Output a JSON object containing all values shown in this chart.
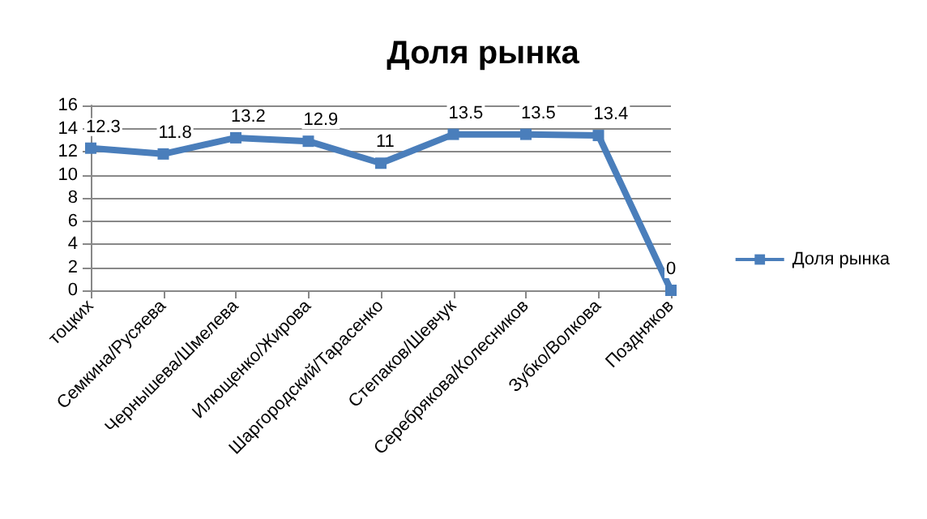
{
  "chart_data": {
    "type": "line",
    "title": "Доля рынка",
    "categories": [
      "тоцких",
      "Семкина/Русяева",
      "Чернышева/Шмелева",
      "Илющенко/Жирова",
      "Шаргородский/Тарасенко",
      "Степаков/Шевчук",
      "Серебрякова/Колесников",
      "Зубко/Волкова",
      "Поздняков"
    ],
    "series": [
      {
        "name": "Доля рынка",
        "color": "#4a7ebb",
        "values": [
          12.3,
          11.8,
          13.2,
          12.9,
          11,
          13.5,
          13.5,
          13.4,
          0
        ]
      }
    ],
    "ylim": [
      0,
      16
    ],
    "yticks": [
      0,
      2,
      4,
      6,
      8,
      10,
      12,
      14,
      16
    ],
    "grid": "y",
    "legend": "right",
    "marker": "square",
    "data_labels": true
  }
}
